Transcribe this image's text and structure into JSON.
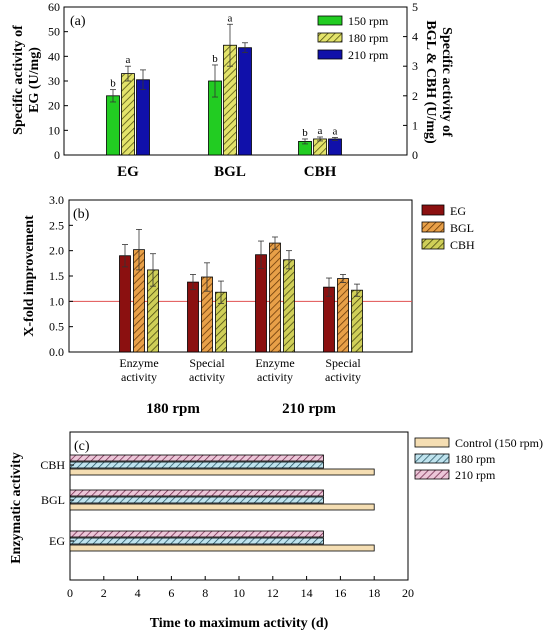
{
  "chart_data": [
    {
      "type": "bar",
      "panel_label": "(a)",
      "categories": [
        "EG",
        "BGL",
        "CBH"
      ],
      "series": [
        {
          "name": "150 rpm",
          "color": "#22cc22",
          "pattern": "solid",
          "values": [
            24,
            30,
            5.5
          ],
          "errors": [
            2.5,
            6.5,
            1.0
          ],
          "letters": [
            "b",
            "b",
            "b"
          ]
        },
        {
          "name": "180 rpm",
          "color": "#d9d94a",
          "pattern": "hatch",
          "values": [
            33,
            44.5,
            6.5
          ],
          "errors": [
            3,
            8.5,
            0.8
          ],
          "letters": [
            "a",
            "a",
            "a"
          ]
        },
        {
          "name": "210 rpm",
          "color": "#1010aa",
          "pattern": "solid",
          "values": [
            30.5,
            43.5,
            6.5
          ],
          "errors": [
            4,
            2,
            0.6
          ],
          "letters": [
            "",
            "",
            "a"
          ]
        }
      ],
      "ylabel": "Specific activity of EG (U/mg)",
      "ylim": [
        0,
        60
      ],
      "yticks": [
        "0",
        "10",
        "20",
        "30",
        "40",
        "50",
        "60"
      ],
      "y2label": "Specific activity of BGL & CBH (U/mg)",
      "y2lim": [
        0,
        5
      ],
      "y2ticks": [
        "0",
        "1",
        "2",
        "3",
        "4",
        "5"
      ],
      "legend": "top-right",
      "grid": false
    },
    {
      "type": "bar",
      "panel_label": "(b)",
      "categories": [
        "Enzyme activity",
        "Special activity",
        "Enzyme activity",
        "Special activity"
      ],
      "category_lines": [
        [
          "Enzyme",
          "activity"
        ],
        [
          "Special",
          "activity"
        ],
        [
          "Enzyme",
          "activity"
        ],
        [
          "Special",
          "activity"
        ]
      ],
      "groups": [
        "180 rpm",
        "210 rpm"
      ],
      "series": [
        {
          "name": "EG",
          "color": "#8b1010",
          "pattern": "solid",
          "values": [
            1.9,
            1.38,
            1.92,
            1.28
          ],
          "errors": [
            0.22,
            0.15,
            0.27,
            0.18
          ]
        },
        {
          "name": "BGL",
          "color": "#e09030",
          "pattern": "hatch",
          "values": [
            2.02,
            1.48,
            2.15,
            1.45
          ],
          "errors": [
            0.4,
            0.28,
            0.12,
            0.08
          ]
        },
        {
          "name": "CBH",
          "color": "#c8c84a",
          "pattern": "hatch",
          "values": [
            1.62,
            1.18,
            1.82,
            1.22
          ],
          "errors": [
            0.32,
            0.22,
            0.18,
            0.12
          ]
        }
      ],
      "reference_line": 1.0,
      "ylabel": "X-fold improvement",
      "ylim": [
        0,
        3
      ],
      "yticks": [
        "0.0",
        "0.5",
        "1.0",
        "1.5",
        "2.0",
        "2.5",
        "3.0"
      ],
      "legend": "right",
      "grid": false
    },
    {
      "type": "bar",
      "orientation": "horizontal",
      "panel_label": "(c)",
      "categories": [
        "EG",
        "BGL",
        "CBH"
      ],
      "series": [
        {
          "name": "Control  (150 rpm)",
          "color": "#f5deb3",
          "pattern": "solid",
          "values": [
            18,
            18,
            18
          ]
        },
        {
          "name": "180 rpm",
          "color": "#a9d6e5",
          "pattern": "hatch",
          "values": [
            15,
            15,
            15
          ]
        },
        {
          "name": "210 rpm",
          "color": "#d9a3c0",
          "pattern": "hatch",
          "values": [
            15,
            15,
            15
          ]
        }
      ],
      "xlabel": "Time to maximum activity (d)",
      "ylabel": "Enzymatic activity",
      "xlim": [
        0,
        20
      ],
      "xticks": [
        "0",
        "2",
        "4",
        "6",
        "8",
        "10",
        "12",
        "14",
        "16",
        "18",
        "20"
      ],
      "legend": "top-right",
      "grid": false
    }
  ]
}
